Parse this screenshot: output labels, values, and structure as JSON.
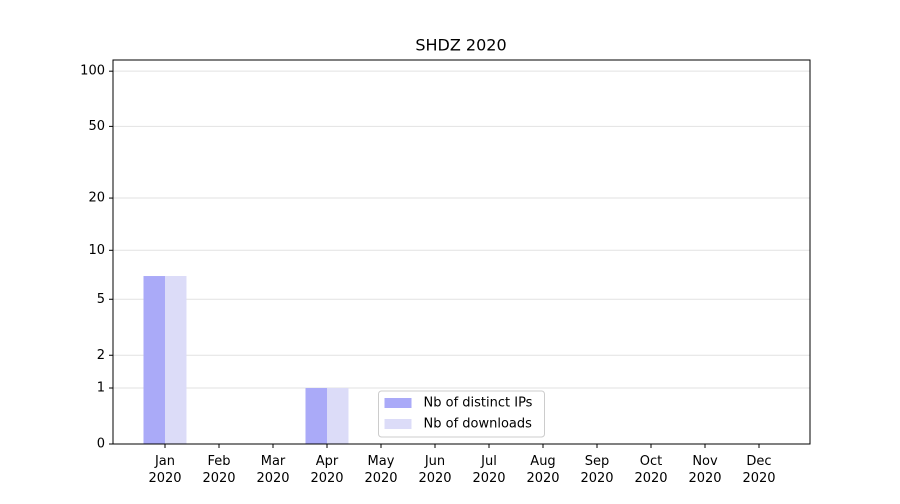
{
  "chart_data": {
    "type": "bar",
    "title": "SHDZ 2020",
    "categories": [
      "Jan 2020",
      "Feb 2020",
      "Mar 2020",
      "Apr 2020",
      "May 2020",
      "Jun 2020",
      "Jul 2020",
      "Aug 2020",
      "Sep 2020",
      "Oct 2020",
      "Nov 2020",
      "Dec 2020"
    ],
    "series": [
      {
        "name": "Nb of distinct IPs",
        "color": "#aaaaf8",
        "values": [
          7,
          0,
          0,
          1,
          0,
          0,
          0,
          0,
          0,
          0,
          0,
          0
        ]
      },
      {
        "name": "Nb of downloads",
        "color": "#dcdcf8",
        "values": [
          7,
          0,
          0,
          1,
          0,
          0,
          0,
          0,
          0,
          0,
          0,
          0
        ]
      }
    ],
    "yscale": "log1p",
    "ylim": [
      0,
      115
    ],
    "yticks": [
      0,
      1,
      2,
      5,
      10,
      20,
      50,
      100
    ],
    "grid": true,
    "legend": "lower center"
  }
}
